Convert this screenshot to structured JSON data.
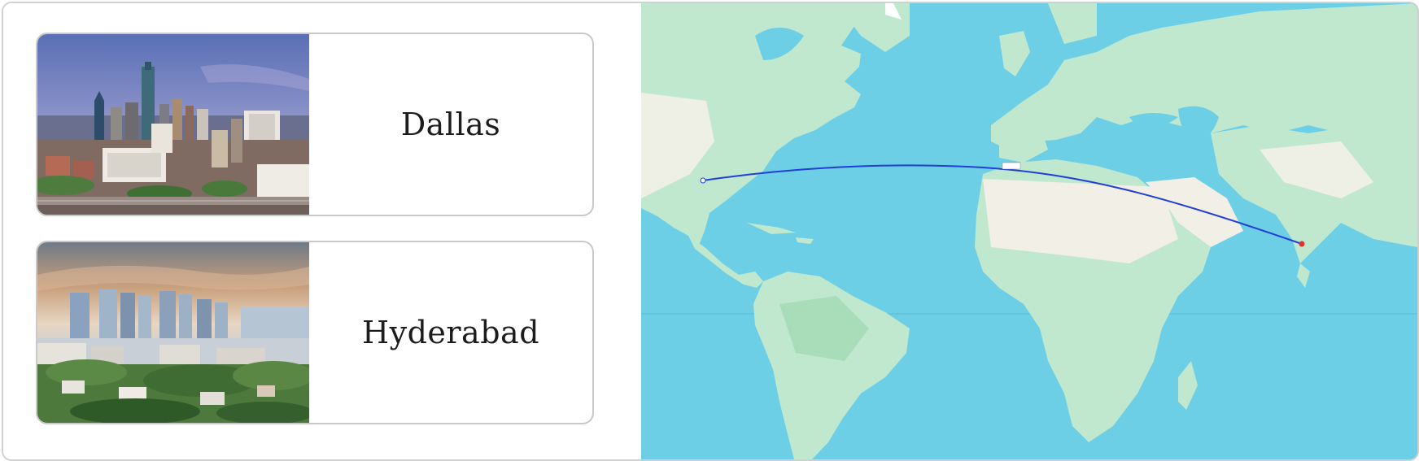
{
  "cities": [
    {
      "name": "Dallas",
      "photo": "dallas-skyline-photo"
    },
    {
      "name": "Hyderabad",
      "photo": "hyderabad-skyline-photo"
    }
  ],
  "map": {
    "type": "flight-route-map",
    "route_color": "#1f3fd6",
    "origin_marker_color": "#ffffff",
    "destination_marker_color": "#e0322b",
    "ocean_color": "#6dcfe6",
    "land_color": "#bfe8cf",
    "desert_color": "#f2efe6"
  }
}
